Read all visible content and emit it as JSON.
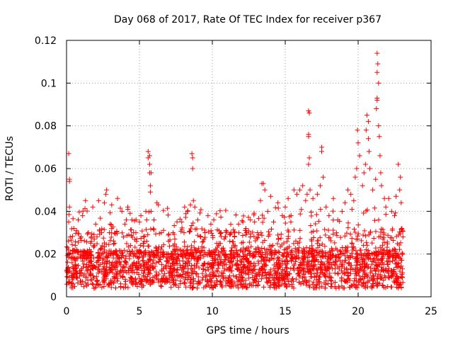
{
  "chart_data": {
    "type": "scatter",
    "title": "Day 068 of 2017, Rate Of TEC Index for receiver p367",
    "xlabel": "GPS time / hours",
    "ylabel": "ROTI / TECUs",
    "xlim": [
      0,
      25
    ],
    "ylim": [
      0,
      0.12
    ],
    "xticks": [
      0,
      5,
      10,
      15,
      20,
      25
    ],
    "xtick_labels": [
      "0",
      "5",
      "10",
      "15",
      "20",
      "25"
    ],
    "yticks": [
      0,
      0.02,
      0.04,
      0.06,
      0.08,
      0.1,
      0.12
    ],
    "ytick_labels": [
      "0",
      "0.02",
      "0.04",
      "0.06",
      "0.08",
      "0.1",
      "0.12"
    ],
    "grid": true,
    "marker": "plus",
    "color": "#ff0000",
    "series": [
      {
        "name": "ROTI",
        "points": [
          [
            0.05,
            0.012
          ],
          [
            0.1,
            0.02
          ],
          [
            0.15,
            0.035
          ],
          [
            0.15,
            0.067
          ],
          [
            0.2,
            0.055
          ],
          [
            0.2,
            0.054
          ],
          [
            0.2,
            0.042
          ],
          [
            0.25,
            0.028
          ],
          [
            0.3,
            0.018
          ],
          [
            0.35,
            0.01
          ],
          [
            0.4,
            0.008
          ],
          [
            0.5,
            0.032
          ],
          [
            0.6,
            0.015
          ],
          [
            0.7,
            0.022
          ],
          [
            0.8,
            0.036
          ],
          [
            0.9,
            0.012
          ],
          [
            1.0,
            0.028
          ],
          [
            1.1,
            0.038
          ],
          [
            1.2,
            0.02
          ],
          [
            1.3,
            0.045
          ],
          [
            1.4,
            0.018
          ],
          [
            1.5,
            0.03
          ],
          [
            1.7,
            0.026
          ],
          [
            1.8,
            0.042
          ],
          [
            1.9,
            0.014
          ],
          [
            2.0,
            0.034
          ],
          [
            2.2,
            0.045
          ],
          [
            2.3,
            0.022
          ],
          [
            2.4,
            0.03
          ],
          [
            2.6,
            0.044
          ],
          [
            2.7,
            0.048
          ],
          [
            2.75,
            0.05
          ],
          [
            2.9,
            0.02
          ],
          [
            3.0,
            0.034
          ],
          [
            3.1,
            0.043
          ],
          [
            3.3,
            0.025
          ],
          [
            3.5,
            0.046
          ],
          [
            3.6,
            0.018
          ],
          [
            3.8,
            0.04
          ],
          [
            3.9,
            0.028
          ],
          [
            4.0,
            0.034
          ],
          [
            4.1,
            0.036
          ],
          [
            4.2,
            0.042
          ],
          [
            4.4,
            0.02
          ],
          [
            4.6,
            0.03
          ],
          [
            4.8,
            0.026
          ],
          [
            5.0,
            0.035
          ],
          [
            5.1,
            0.038
          ],
          [
            5.3,
            0.028
          ],
          [
            5.5,
            0.036
          ],
          [
            5.6,
            0.065
          ],
          [
            5.6,
            0.068
          ],
          [
            5.7,
            0.066
          ],
          [
            5.7,
            0.062
          ],
          [
            5.7,
            0.058
          ],
          [
            5.75,
            0.052
          ],
          [
            5.75,
            0.049
          ],
          [
            5.8,
            0.058
          ],
          [
            5.8,
            0.04
          ],
          [
            6.0,
            0.036
          ],
          [
            6.2,
            0.044
          ],
          [
            6.3,
            0.043
          ],
          [
            6.5,
            0.03
          ],
          [
            6.7,
            0.02
          ],
          [
            7.0,
            0.026
          ],
          [
            7.3,
            0.03
          ],
          [
            7.6,
            0.018
          ],
          [
            7.9,
            0.035
          ],
          [
            8.1,
            0.042
          ],
          [
            8.3,
            0.04
          ],
          [
            8.5,
            0.043
          ],
          [
            8.6,
            0.067
          ],
          [
            8.65,
            0.065
          ],
          [
            8.65,
            0.06
          ],
          [
            8.7,
            0.045
          ],
          [
            8.8,
            0.042
          ],
          [
            9.0,
            0.036
          ],
          [
            9.2,
            0.028
          ],
          [
            9.5,
            0.03
          ],
          [
            9.7,
            0.038
          ],
          [
            9.9,
            0.034
          ],
          [
            10.1,
            0.036
          ],
          [
            10.3,
            0.025
          ],
          [
            10.6,
            0.03
          ],
          [
            10.9,
            0.02
          ],
          [
            11.2,
            0.026
          ],
          [
            11.5,
            0.03
          ],
          [
            11.8,
            0.034
          ],
          [
            12.1,
            0.035
          ],
          [
            12.3,
            0.032
          ],
          [
            12.6,
            0.028
          ],
          [
            12.9,
            0.035
          ],
          [
            13.1,
            0.03
          ],
          [
            13.3,
            0.045
          ],
          [
            13.4,
            0.053
          ],
          [
            13.5,
            0.053
          ],
          [
            13.6,
            0.05
          ],
          [
            13.8,
            0.04
          ],
          [
            14.0,
            0.047
          ],
          [
            14.2,
            0.035
          ],
          [
            14.5,
            0.044
          ],
          [
            14.8,
            0.038
          ],
          [
            15.0,
            0.042
          ],
          [
            15.2,
            0.046
          ],
          [
            15.4,
            0.038
          ],
          [
            15.6,
            0.05
          ],
          [
            15.8,
            0.048
          ],
          [
            16.0,
            0.05
          ],
          [
            16.2,
            0.052
          ],
          [
            16.4,
            0.045
          ],
          [
            16.5,
            0.048
          ],
          [
            16.6,
            0.087
          ],
          [
            16.65,
            0.086
          ],
          [
            16.6,
            0.076
          ],
          [
            16.6,
            0.075
          ],
          [
            16.65,
            0.065
          ],
          [
            16.6,
            0.062
          ],
          [
            16.7,
            0.05
          ],
          [
            16.9,
            0.046
          ],
          [
            17.2,
            0.048
          ],
          [
            17.4,
            0.052
          ],
          [
            17.5,
            0.07
          ],
          [
            17.5,
            0.068
          ],
          [
            17.6,
            0.056
          ],
          [
            17.8,
            0.042
          ],
          [
            18.0,
            0.038
          ],
          [
            18.3,
            0.046
          ],
          [
            18.6,
            0.036
          ],
          [
            18.9,
            0.04
          ],
          [
            19.1,
            0.044
          ],
          [
            19.3,
            0.05
          ],
          [
            19.5,
            0.048
          ],
          [
            19.7,
            0.045
          ],
          [
            19.8,
            0.056
          ],
          [
            19.9,
            0.06
          ],
          [
            19.95,
            0.078
          ],
          [
            20.0,
            0.072
          ],
          [
            20.1,
            0.066
          ],
          [
            20.3,
            0.052
          ],
          [
            20.4,
            0.058
          ],
          [
            20.5,
            0.062
          ],
          [
            20.55,
            0.078
          ],
          [
            20.6,
            0.085
          ],
          [
            20.7,
            0.082
          ],
          [
            20.7,
            0.074
          ],
          [
            20.75,
            0.068
          ],
          [
            20.8,
            0.06
          ],
          [
            21.0,
            0.05
          ],
          [
            21.2,
            0.055
          ],
          [
            21.25,
            0.088
          ],
          [
            21.3,
            0.093
          ],
          [
            21.3,
            0.092
          ],
          [
            21.3,
            0.105
          ],
          [
            21.35,
            0.109
          ],
          [
            21.3,
            0.114
          ],
          [
            21.4,
            0.1
          ],
          [
            21.4,
            0.08
          ],
          [
            21.45,
            0.075
          ],
          [
            21.5,
            0.066
          ],
          [
            21.55,
            0.058
          ],
          [
            21.6,
            0.052
          ],
          [
            21.8,
            0.046
          ],
          [
            21.9,
            0.042
          ],
          [
            22.1,
            0.046
          ],
          [
            22.3,
            0.04
          ],
          [
            22.5,
            0.038
          ],
          [
            22.6,
            0.047
          ],
          [
            22.75,
            0.062
          ],
          [
            22.85,
            0.05
          ],
          [
            22.9,
            0.056
          ],
          [
            22.95,
            0.044
          ],
          [
            23.0,
            0.032
          ],
          [
            23.05,
            0.02
          ]
        ]
      }
    ]
  }
}
